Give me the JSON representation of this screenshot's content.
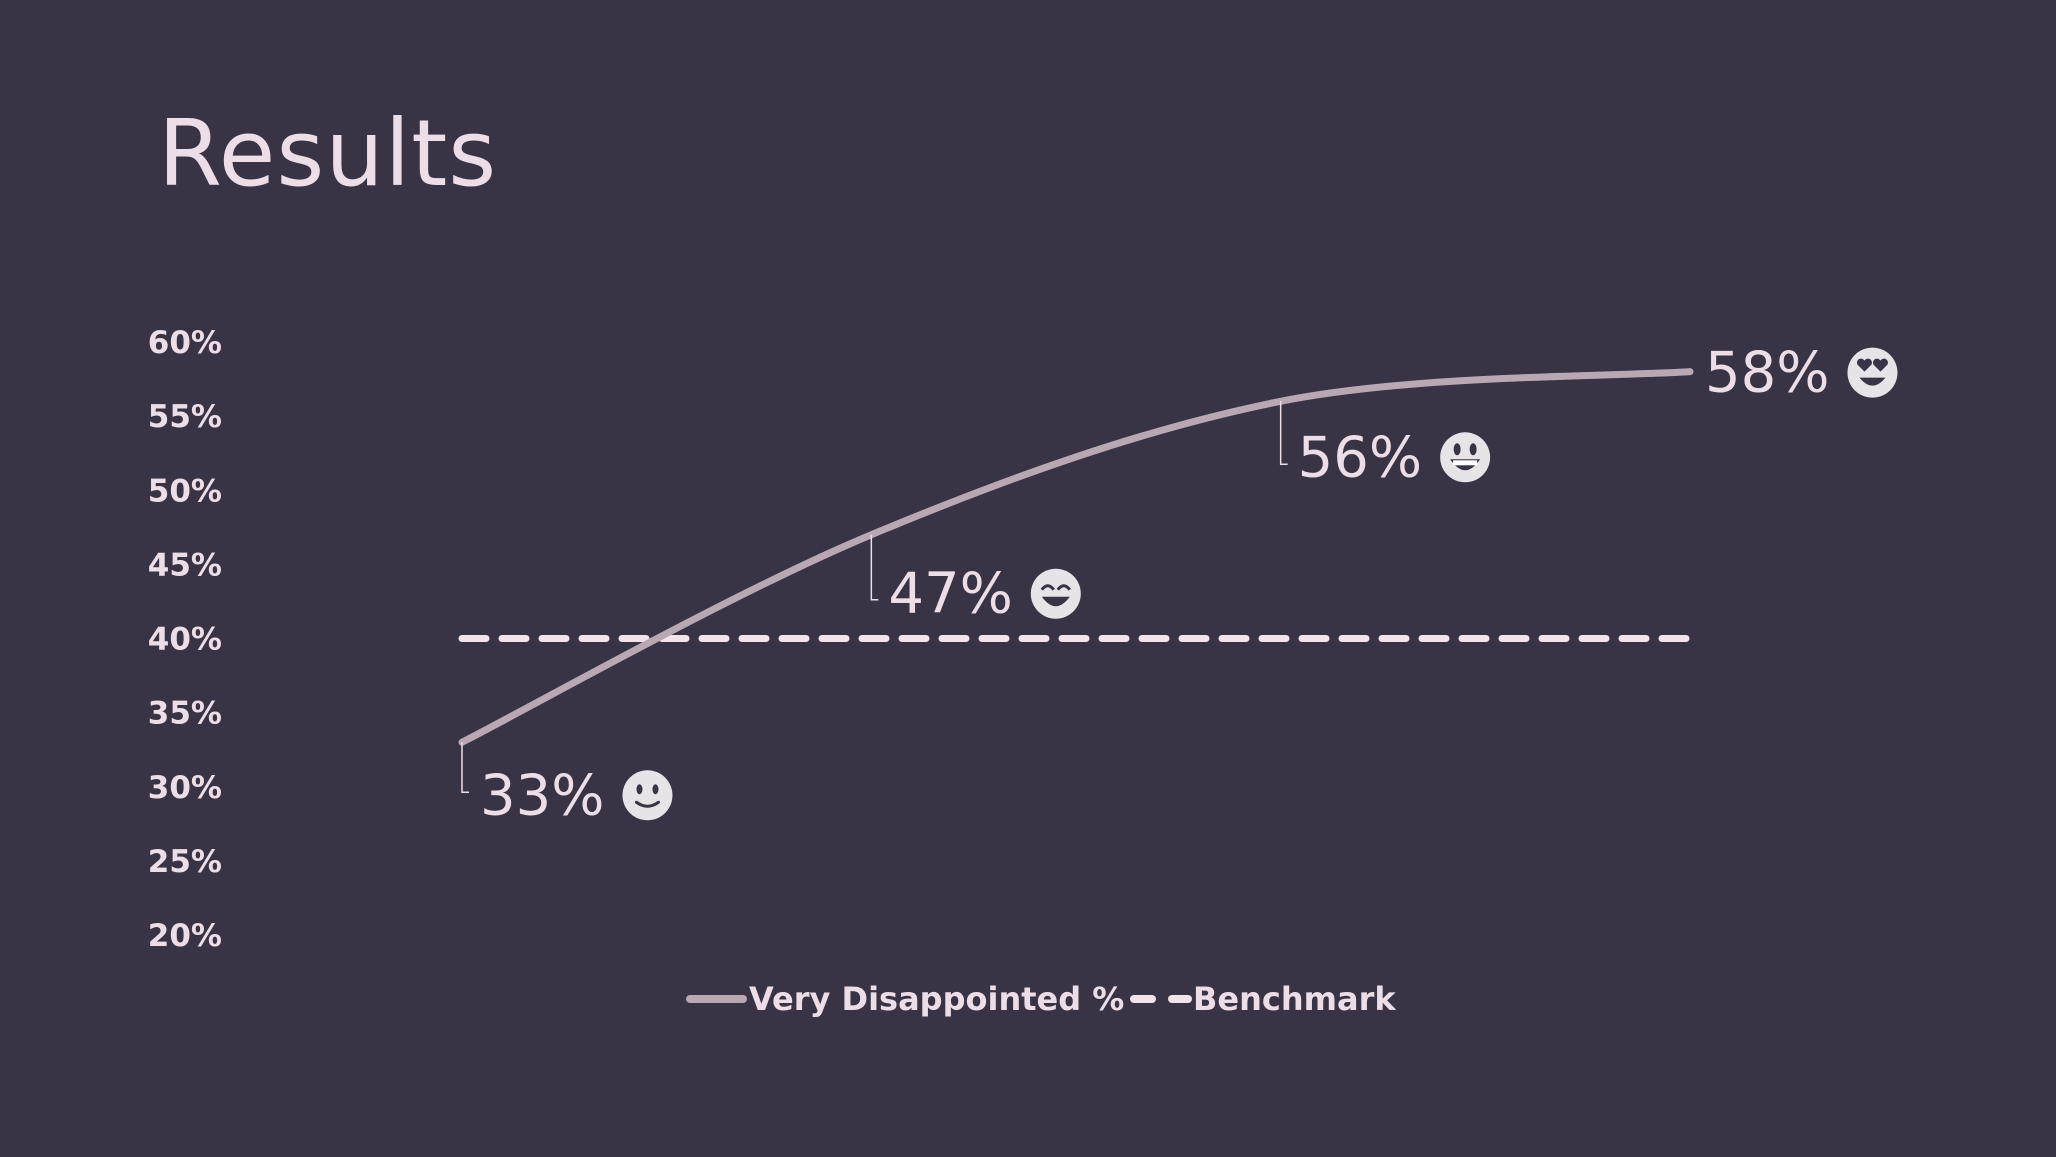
{
  "slide": {
    "title": "Results"
  },
  "colors": {
    "background": "#383446",
    "text": "#eddde6",
    "line": "#b9a8b4",
    "benchmark": "#f3e3ea",
    "emoji": "#e8e3e6"
  },
  "chart_data": {
    "type": "line",
    "title": "",
    "xlabel": "",
    "ylabel": "",
    "ylim": [
      20,
      60
    ],
    "y_ticks": [
      "20%",
      "25%",
      "30%",
      "35%",
      "40%",
      "45%",
      "50%",
      "55%",
      "60%"
    ],
    "x": [
      1,
      2,
      3,
      4
    ],
    "series": [
      {
        "name": "Very Disappointed %",
        "values": [
          33,
          47,
          56,
          58
        ],
        "labels": [
          "33%",
          "47%",
          "56%",
          "58%"
        ],
        "label_icons": [
          "slightly-smiling-face-icon",
          "grinning-smiling-eyes-icon",
          "grinning-face-big-eyes-icon",
          "heart-eyes-icon"
        ],
        "style": "solid"
      },
      {
        "name": "Benchmark",
        "values": [
          40,
          40,
          40,
          40
        ],
        "style": "dashed"
      }
    ],
    "legend": {
      "position": "bottom",
      "entries": [
        "Very Disappointed %",
        "Benchmark"
      ]
    },
    "grid": false
  }
}
